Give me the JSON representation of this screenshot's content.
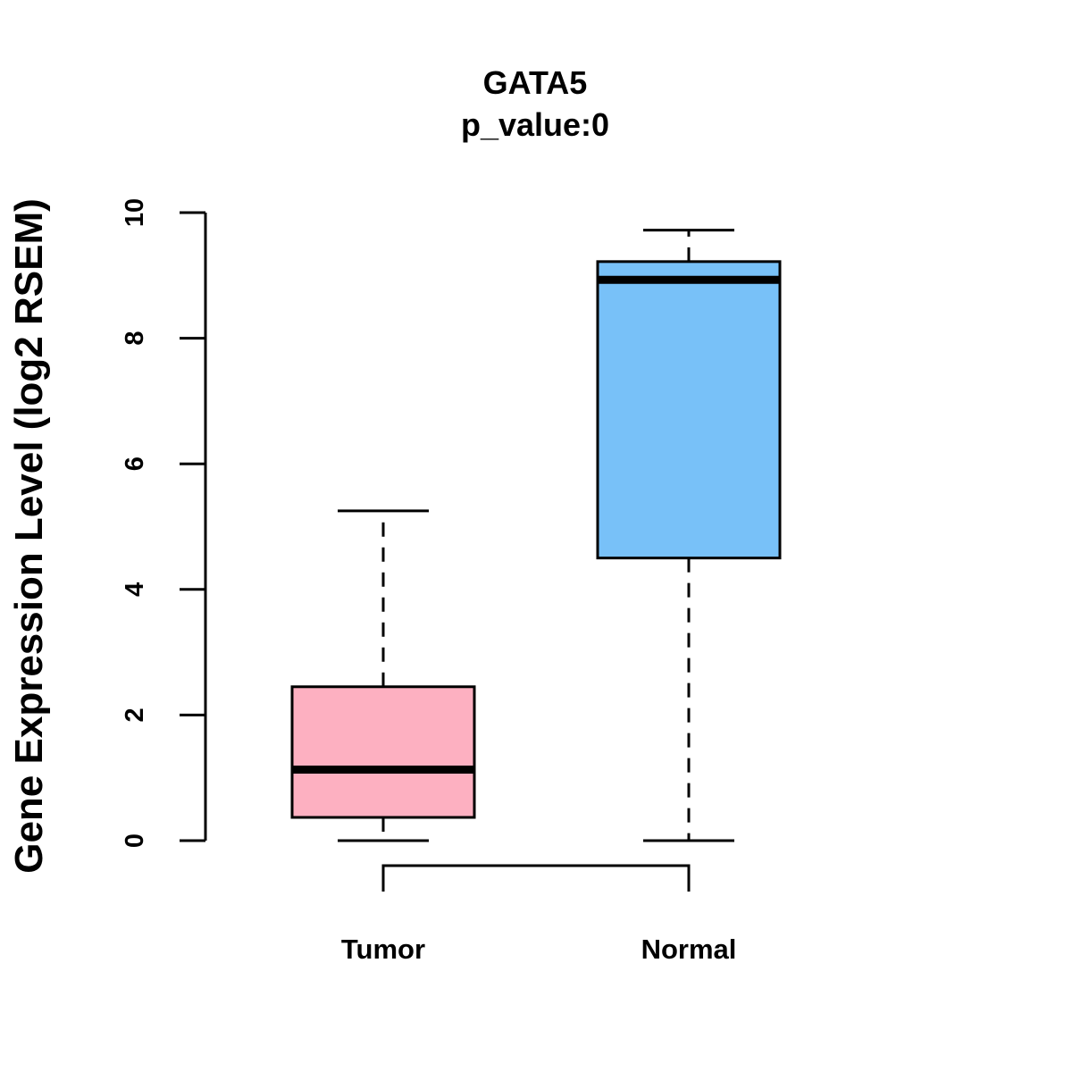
{
  "chart_data": {
    "type": "box",
    "title": "GATA5",
    "subtitle": "p_value:0",
    "ylabel": "Gene Expression Level (log2 RSEM)",
    "xlabel": "",
    "ylim": [
      0,
      10
    ],
    "yticks": [
      "0",
      "2",
      "4",
      "6",
      "8",
      "10"
    ],
    "grid": false,
    "categories": [
      "Tumor",
      "Normal"
    ],
    "boxes": [
      {
        "name": "Tumor",
        "min": 0,
        "q1": 0.37,
        "median": 1.13,
        "q3": 2.45,
        "max": 5.25,
        "color": "#fdb0c1"
      },
      {
        "name": "Normal",
        "min": 0,
        "q1": 4.5,
        "median": 8.93,
        "q3": 9.22,
        "max": 9.72,
        "color": "#78c1f8"
      }
    ]
  }
}
